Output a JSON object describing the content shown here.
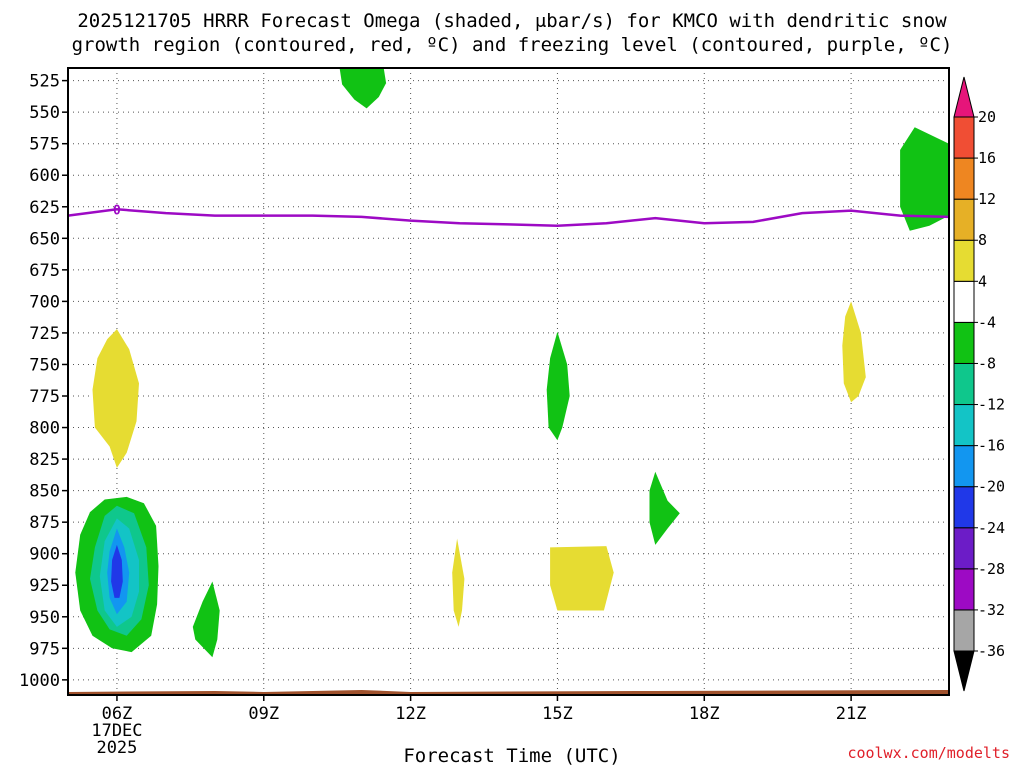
{
  "title_line1": "2025121705 HRRR Forecast Omega (shaded, μbar/s) for KMCO with dendritic snow",
  "title_line2": "growth region (contoured, red, ºC) and freezing level (contoured, purple, ºC)",
  "credit": "coolwx.com/modelts",
  "chart_data": {
    "type": "heatmap",
    "title": "2025121705 HRRR Forecast Omega (shaded, μbar/s) for KMCO with dendritic snow growth region (contoured, red, ºC) and freezing level (contoured, purple, ºC)",
    "xlabel": "Forecast Time (UTC)",
    "ylabel": "",
    "x_units": "hours UTC on 17DEC2025",
    "xlim": [
      5,
      23
    ],
    "x_ticks": [
      {
        "hour": 6,
        "label": "06Z",
        "sub1": "17DEC",
        "sub2": "2025"
      },
      {
        "hour": 9,
        "label": "09Z"
      },
      {
        "hour": 12,
        "label": "12Z"
      },
      {
        "hour": 15,
        "label": "15Z"
      },
      {
        "hour": 18,
        "label": "18Z"
      },
      {
        "hour": 21,
        "label": "21Z"
      }
    ],
    "y_units": "pressure (hPa)",
    "ylim": [
      1012,
      515
    ],
    "y_ticks": [
      525,
      550,
      575,
      600,
      625,
      650,
      675,
      700,
      725,
      750,
      775,
      800,
      825,
      850,
      875,
      900,
      925,
      950,
      975,
      1000
    ],
    "grid": true,
    "colorbar": {
      "levels": [
        "-36",
        "-32",
        "-28",
        "-24",
        "-20",
        "-16",
        "-12",
        "-8",
        "-4",
        "4",
        "8",
        "12",
        "16",
        "20"
      ],
      "bin_colors": [
        "#a6a6a6",
        "#9d0ac4",
        "#6c1cc7",
        "#2038e8",
        "#1296f0",
        "#13c4c6",
        "#0fc78c",
        "#11c214",
        "#ffffff",
        "#e6dc32",
        "#e6b026",
        "#ee8621",
        "#f04e34"
      ],
      "low_color": "#000000",
      "high_color": "#e6157a"
    },
    "freezing_level": {
      "label": "0",
      "color": "#9d0ac4",
      "points": [
        [
          5.0,
          632
        ],
        [
          6.0,
          627
        ],
        [
          7.0,
          630
        ],
        [
          8.0,
          632
        ],
        [
          9.0,
          632
        ],
        [
          10.0,
          632
        ],
        [
          11.0,
          633
        ],
        [
          12.0,
          636
        ],
        [
          13.0,
          638
        ],
        [
          14.0,
          639
        ],
        [
          15.0,
          640
        ],
        [
          16.0,
          638
        ],
        [
          17.0,
          634
        ],
        [
          18.0,
          638
        ],
        [
          19.0,
          637
        ],
        [
          20.0,
          630
        ],
        [
          21.0,
          628
        ],
        [
          22.0,
          632
        ],
        [
          23.0,
          633
        ]
      ]
    },
    "omega_regions": [
      {
        "name": "green-top-11z",
        "omega_bin": "-8 to -4",
        "color": "#11c214",
        "points": [
          [
            10.55,
            515
          ],
          [
            11.45,
            515
          ],
          [
            11.5,
            527
          ],
          [
            11.35,
            538
          ],
          [
            11.1,
            547
          ],
          [
            10.85,
            540
          ],
          [
            10.6,
            528
          ]
        ]
      },
      {
        "name": "green-right-22z",
        "omega_bin": "-8 to -4",
        "color": "#11c214",
        "points": [
          [
            22.0,
            580
          ],
          [
            22.3,
            562
          ],
          [
            23.0,
            575
          ],
          [
            23.0,
            632
          ],
          [
            22.6,
            640
          ],
          [
            22.2,
            644
          ],
          [
            22.0,
            625
          ]
        ]
      },
      {
        "name": "yellow-06z-upper",
        "omega_bin": "4 to 8",
        "color": "#e6dc32",
        "points": [
          [
            6.0,
            722
          ],
          [
            6.25,
            738
          ],
          [
            6.45,
            765
          ],
          [
            6.4,
            795
          ],
          [
            6.2,
            820
          ],
          [
            6.0,
            832
          ],
          [
            5.85,
            815
          ],
          [
            5.55,
            800
          ],
          [
            5.5,
            770
          ],
          [
            5.6,
            745
          ],
          [
            5.8,
            730
          ]
        ]
      },
      {
        "name": "green-15z",
        "omega_bin": "-8 to -4",
        "color": "#11c214",
        "points": [
          [
            15.0,
            724
          ],
          [
            15.2,
            750
          ],
          [
            15.25,
            775
          ],
          [
            15.1,
            800
          ],
          [
            15.0,
            810
          ],
          [
            14.82,
            800
          ],
          [
            14.78,
            770
          ],
          [
            14.85,
            745
          ]
        ]
      },
      {
        "name": "yellow-21z",
        "omega_bin": "4 to 8",
        "color": "#e6dc32",
        "points": [
          [
            21.0,
            700
          ],
          [
            21.2,
            725
          ],
          [
            21.3,
            760
          ],
          [
            21.15,
            775
          ],
          [
            21.0,
            780
          ],
          [
            20.85,
            765
          ],
          [
            20.82,
            735
          ],
          [
            20.88,
            712
          ]
        ]
      },
      {
        "name": "green-17z",
        "omega_bin": "-8 to -4",
        "color": "#11c214",
        "points": [
          [
            17.0,
            835
          ],
          [
            17.25,
            858
          ],
          [
            17.5,
            868
          ],
          [
            17.25,
            880
          ],
          [
            17.0,
            893
          ],
          [
            16.88,
            875
          ],
          [
            16.88,
            850
          ]
        ]
      },
      {
        "name": "green-06z-lower",
        "omega_bin": "-8 to -4",
        "color": "#11c214",
        "points": [
          [
            5.25,
            885
          ],
          [
            5.45,
            867
          ],
          [
            5.75,
            857
          ],
          [
            6.2,
            855
          ],
          [
            6.55,
            860
          ],
          [
            6.8,
            878
          ],
          [
            6.85,
            910
          ],
          [
            6.82,
            940
          ],
          [
            6.7,
            965
          ],
          [
            6.3,
            978
          ],
          [
            5.9,
            975
          ],
          [
            5.5,
            965
          ],
          [
            5.25,
            945
          ],
          [
            5.15,
            915
          ]
        ]
      },
      {
        "name": "green-06z-inner",
        "omega_bin": "-12 to -8",
        "color": "#0fc78c",
        "points": [
          [
            5.55,
            895
          ],
          [
            5.75,
            870
          ],
          [
            6.0,
            862
          ],
          [
            6.35,
            868
          ],
          [
            6.6,
            895
          ],
          [
            6.65,
            925
          ],
          [
            6.5,
            952
          ],
          [
            6.2,
            965
          ],
          [
            5.85,
            960
          ],
          [
            5.6,
            945
          ],
          [
            5.45,
            920
          ]
        ]
      },
      {
        "name": "teal-06z",
        "omega_bin": "-16 to -12",
        "color": "#13c4c6",
        "points": [
          [
            5.75,
            890
          ],
          [
            6.0,
            872
          ],
          [
            6.25,
            880
          ],
          [
            6.45,
            905
          ],
          [
            6.45,
            930
          ],
          [
            6.3,
            950
          ],
          [
            6.0,
            958
          ],
          [
            5.75,
            945
          ],
          [
            5.65,
            918
          ]
        ]
      },
      {
        "name": "blue-06z",
        "omega_bin": "-20 to -16",
        "color": "#1296f0",
        "points": [
          [
            5.85,
            898
          ],
          [
            6.0,
            880
          ],
          [
            6.15,
            895
          ],
          [
            6.25,
            915
          ],
          [
            6.2,
            938
          ],
          [
            6.0,
            948
          ],
          [
            5.85,
            935
          ],
          [
            5.8,
            915
          ]
        ]
      },
      {
        "name": "darkblue-06z",
        "omega_bin": "-24 to -20",
        "color": "#2038e8",
        "points": [
          [
            6.0,
            893
          ],
          [
            6.1,
            905
          ],
          [
            6.12,
            922
          ],
          [
            6.05,
            935
          ],
          [
            5.95,
            935
          ],
          [
            5.88,
            922
          ],
          [
            5.9,
            905
          ]
        ]
      },
      {
        "name": "green-08z",
        "omega_bin": "-8 to -4",
        "color": "#11c214",
        "points": [
          [
            7.95,
            922
          ],
          [
            8.1,
            945
          ],
          [
            8.05,
            968
          ],
          [
            7.95,
            982
          ],
          [
            7.6,
            968
          ],
          [
            7.55,
            958
          ],
          [
            7.75,
            938
          ]
        ]
      },
      {
        "name": "yellow-13z",
        "omega_bin": "4 to 8",
        "color": "#e6dc32",
        "points": [
          [
            12.95,
            888
          ],
          [
            13.1,
            920
          ],
          [
            13.05,
            945
          ],
          [
            12.98,
            958
          ],
          [
            12.88,
            945
          ],
          [
            12.85,
            915
          ]
        ]
      },
      {
        "name": "yellow-15z-16z",
        "omega_bin": "4 to 8",
        "color": "#e6dc32",
        "points": [
          [
            14.85,
            895
          ],
          [
            16.0,
            894
          ],
          [
            16.15,
            915
          ],
          [
            15.95,
            945
          ],
          [
            15.0,
            945
          ],
          [
            14.85,
            925
          ]
        ]
      }
    ],
    "terrain": {
      "color": "#a0522d",
      "pressure_top": 1008
    }
  }
}
